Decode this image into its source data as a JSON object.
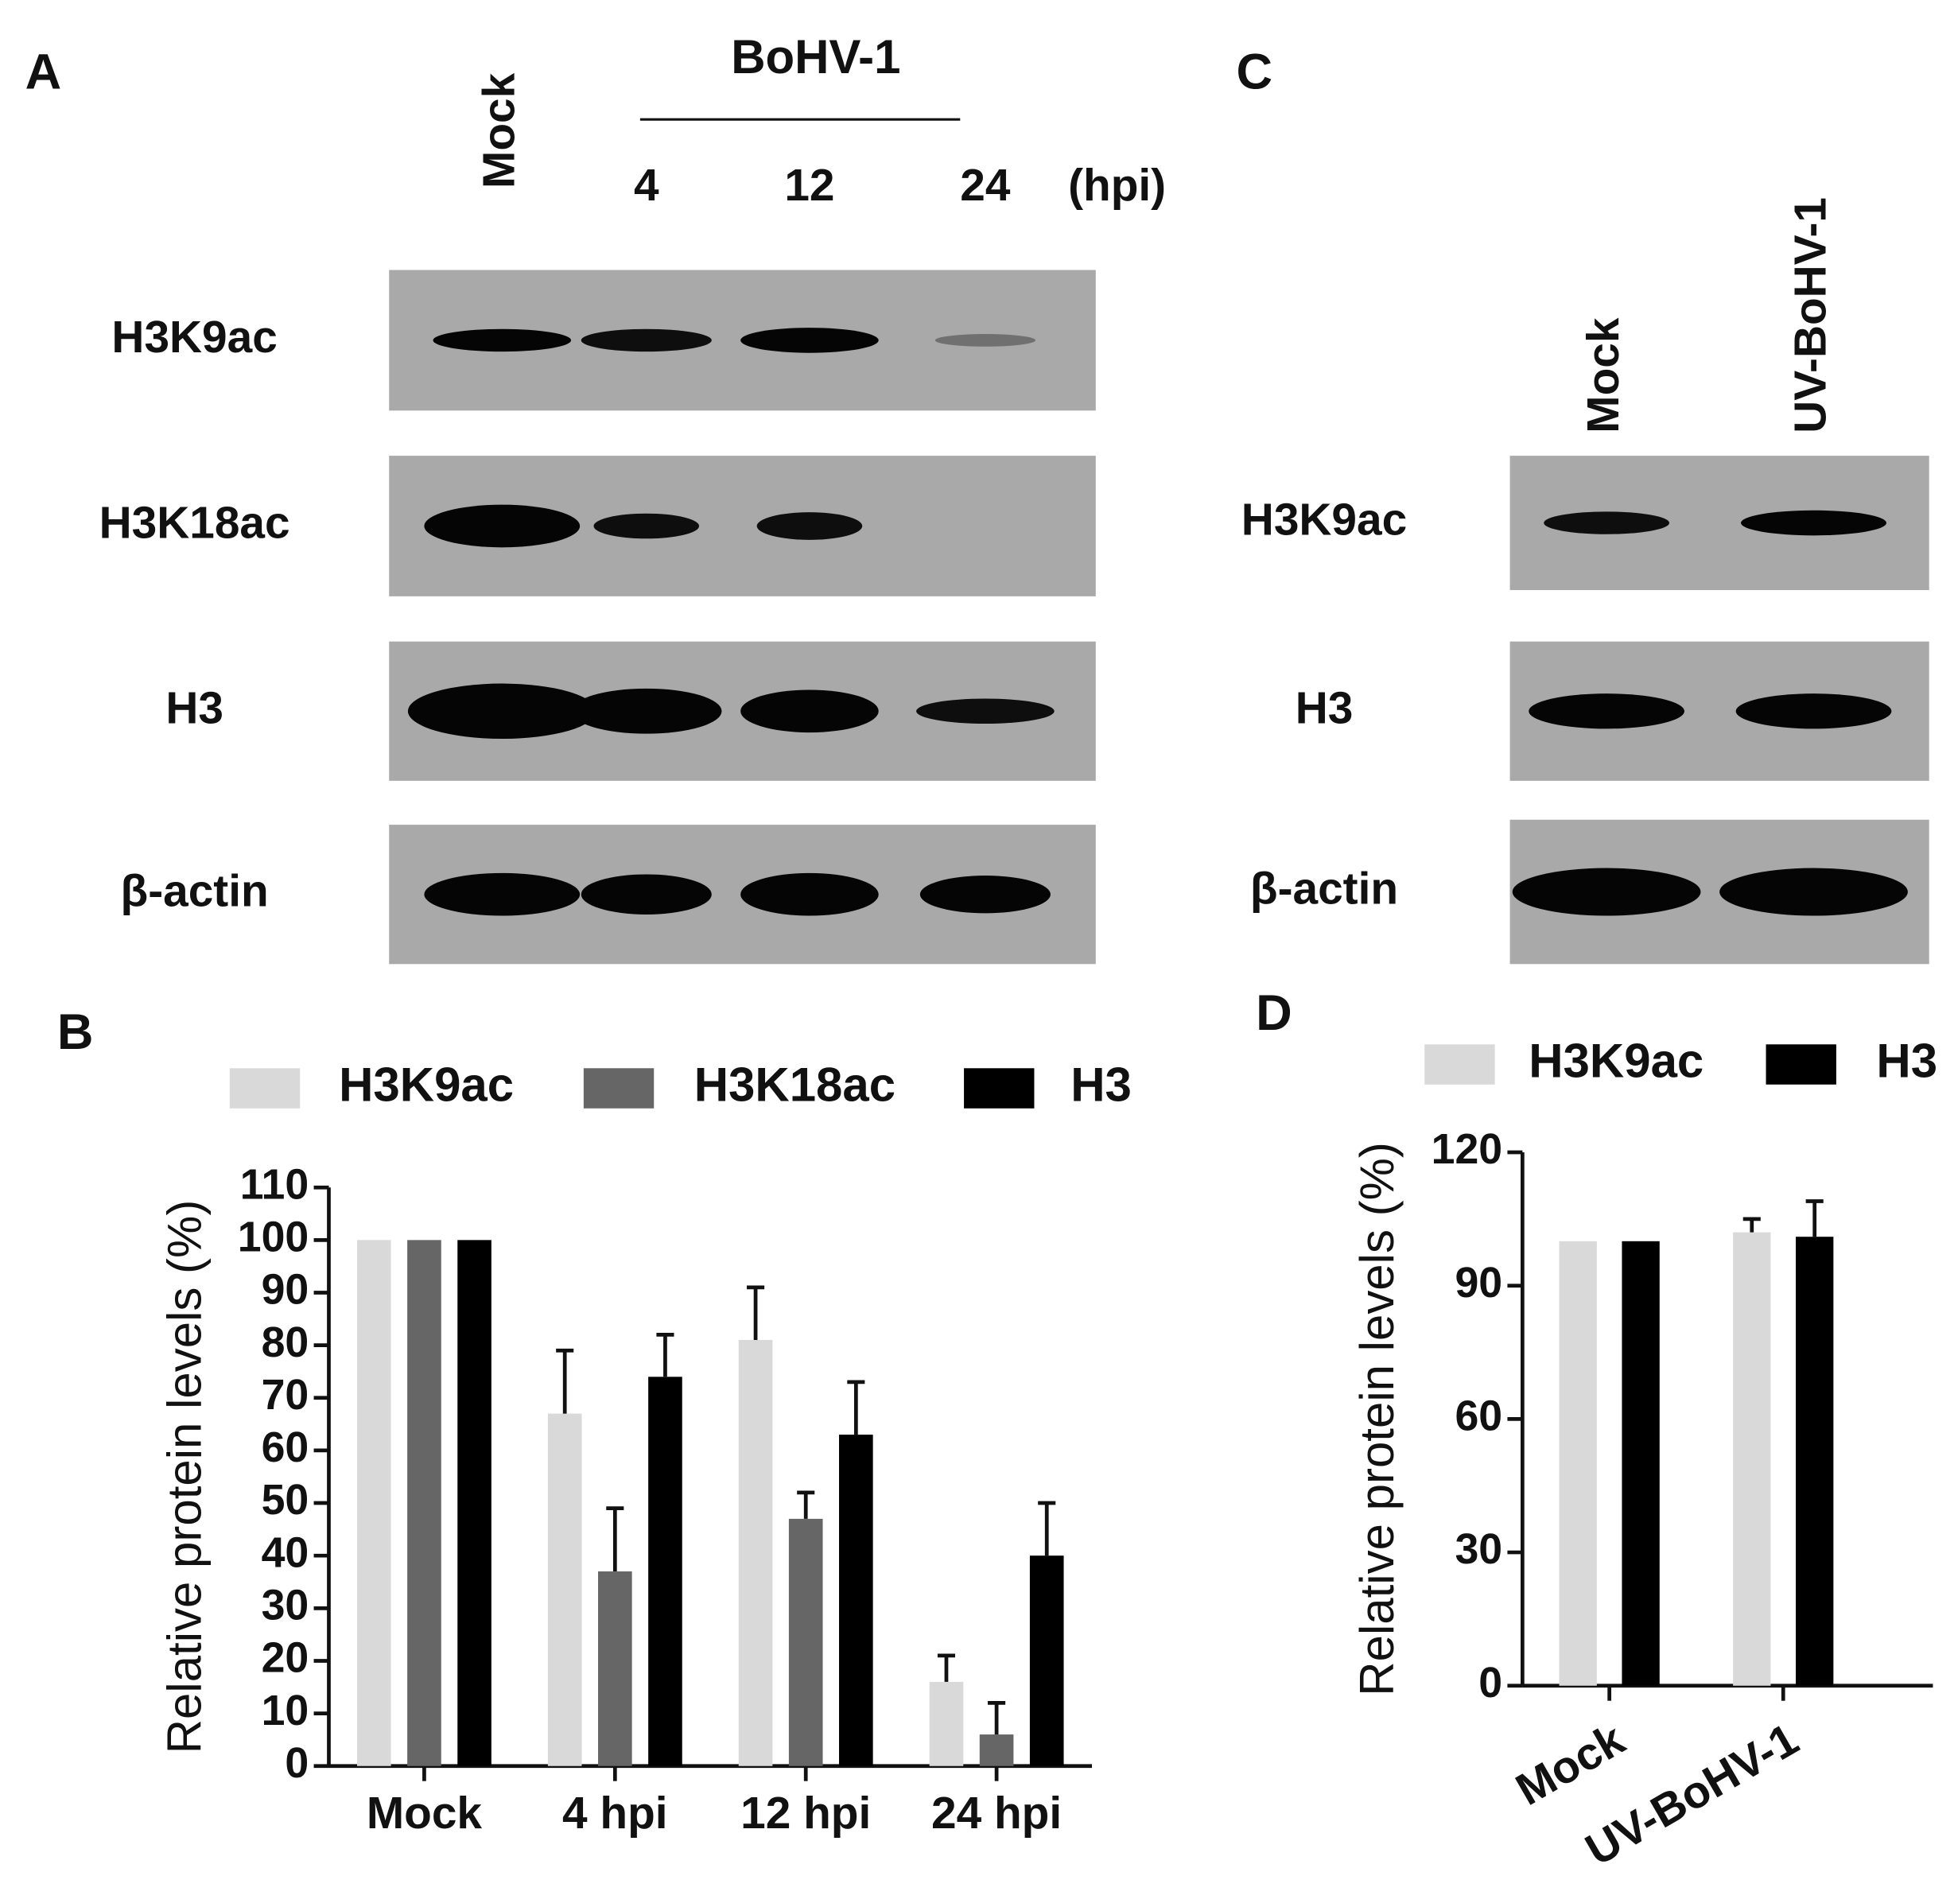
{
  "blots": [
    {
      "panel": "A",
      "group": "BoHV-1",
      "unit": "(hpi)",
      "lanes": [
        "Mock",
        "4",
        "12",
        "24"
      ],
      "rows": [
        "H3K9ac",
        "H3K18ac",
        "H3",
        "β-actin"
      ]
    },
    {
      "panel": "C",
      "lanes": [
        "Mock",
        "UV-BoHV-1"
      ],
      "rows": [
        "H3K9ac",
        "H3",
        "β-actin"
      ]
    }
  ],
  "chart_data": [
    {
      "type": "bar",
      "panel": "B",
      "y_label": "Relative protein levels (%)",
      "categories": [
        "Mock",
        "4 hpi",
        "12 hpi",
        "24 hpi"
      ],
      "series": [
        {
          "name": "H3K9ac",
          "color": "#d9d9d9",
          "values": [
            100,
            67,
            81,
            16
          ],
          "errors": [
            null,
            12,
            10,
            5
          ]
        },
        {
          "name": "H3K18ac",
          "color": "#666666",
          "values": [
            100,
            37,
            47,
            6
          ],
          "errors": [
            null,
            12,
            5,
            6
          ]
        },
        {
          "name": "H3",
          "color": "#000000",
          "values": [
            100,
            74,
            63,
            40
          ],
          "errors": [
            null,
            8,
            10,
            10
          ]
        }
      ],
      "ylim": [
        0,
        110
      ],
      "yticks": [
        0,
        10,
        20,
        30,
        40,
        50,
        60,
        70,
        80,
        90,
        100,
        110
      ]
    },
    {
      "type": "bar",
      "panel": "D",
      "y_label": "Relative protein levels (%)",
      "categories": [
        "Mock",
        "UV-BoHV-1"
      ],
      "series": [
        {
          "name": "H3K9ac",
          "color": "#d9d9d9",
          "values": [
            100,
            102
          ],
          "errors": [
            null,
            3
          ]
        },
        {
          "name": "H3",
          "color": "#000000",
          "values": [
            100,
            101
          ],
          "errors": [
            null,
            8
          ]
        }
      ],
      "ylim": [
        0,
        120
      ],
      "yticks": [
        0,
        30,
        60,
        90,
        120
      ]
    }
  ]
}
